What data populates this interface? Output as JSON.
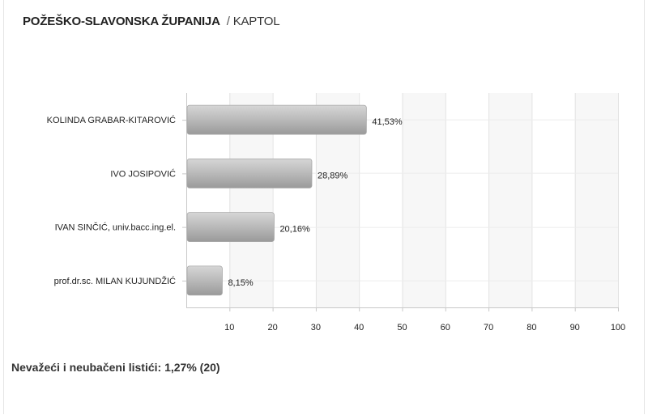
{
  "header": {
    "region": "POŽEŠKO-SLAVONSKA ŽUPANIJA",
    "separator": "/",
    "municipality": "KAPTOL"
  },
  "chart_data": {
    "type": "bar",
    "orientation": "horizontal",
    "categories": [
      "KOLINDA GRABAR-KITAROVIĆ",
      "IVO JOSIPOVIĆ",
      "IVAN SINČIĆ, univ.bacc.ing.el.",
      "prof.dr.sc. MILAN KUJUNDŽIĆ"
    ],
    "values": [
      41.53,
      28.89,
      20.16,
      8.15
    ],
    "value_labels": [
      "41,53%",
      "28,89%",
      "20,16%",
      "8,15%"
    ],
    "xlim": [
      0,
      100
    ],
    "x_ticks": [
      10,
      20,
      30,
      40,
      50,
      60,
      70,
      80,
      90,
      100
    ],
    "grid": true,
    "bar_color": "#b4b4b4",
    "band_color": "#f7f7f7",
    "grid_color": "#e3e3e3",
    "title": "",
    "xlabel": "",
    "ylabel": ""
  },
  "footer": {
    "invalid_ballots": "Nevažeći i neubačeni listići: 1,27% (20)"
  }
}
